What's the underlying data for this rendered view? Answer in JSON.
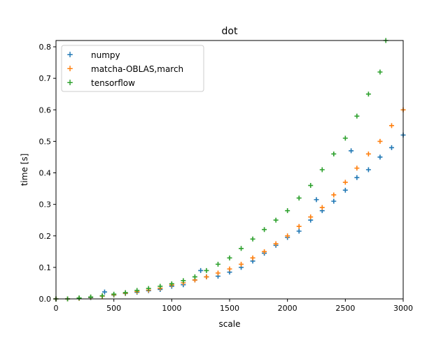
{
  "chart_data": {
    "type": "scatter",
    "title": "dot",
    "xlabel": "scale",
    "ylabel": "time [s]",
    "xlim": [
      0,
      3000
    ],
    "ylim": [
      0,
      0.82
    ],
    "xticks": [
      0,
      500,
      1000,
      1500,
      2000,
      2500,
      3000
    ],
    "yticks": [
      0.0,
      0.1,
      0.2,
      0.3,
      0.4,
      0.5,
      0.6,
      0.7,
      0.8
    ],
    "xtick_labels": [
      "0",
      "500",
      "1000",
      "1500",
      "2000",
      "2500",
      "3000"
    ],
    "ytick_labels": [
      "0.0",
      "0.1",
      "0.2",
      "0.3",
      "0.4",
      "0.5",
      "0.6",
      "0.7",
      "0.8"
    ],
    "grid": false,
    "legend_position": "top-left",
    "marker": "+",
    "series": [
      {
        "name": "numpy",
        "color": "#1f77b4",
        "x": [
          0,
          100,
          200,
          300,
          400,
          420,
          500,
          600,
          700,
          800,
          900,
          1000,
          1100,
          1200,
          1250,
          1300,
          1400,
          1500,
          1600,
          1700,
          1800,
          1900,
          2000,
          2100,
          2200,
          2250,
          2300,
          2400,
          2500,
          2550,
          2600,
          2700,
          2800,
          2900,
          3000
        ],
        "y": [
          0.0,
          0.0,
          0.002,
          0.004,
          0.009,
          0.022,
          0.012,
          0.017,
          0.021,
          0.026,
          0.03,
          0.04,
          0.045,
          0.06,
          0.09,
          0.07,
          0.072,
          0.085,
          0.1,
          0.12,
          0.145,
          0.17,
          0.195,
          0.215,
          0.25,
          0.315,
          0.28,
          0.31,
          0.345,
          0.47,
          0.385,
          0.41,
          0.45,
          0.48,
          0.52
        ]
      },
      {
        "name": "matcha-OBLAS,march",
        "color": "#ff7f0e",
        "x": [
          0,
          100,
          200,
          300,
          400,
          500,
          600,
          700,
          800,
          900,
          1000,
          1100,
          1200,
          1300,
          1400,
          1500,
          1600,
          1700,
          1800,
          1900,
          2000,
          2100,
          2200,
          2300,
          2400,
          2500,
          2600,
          2700,
          2800,
          2900,
          3000
        ],
        "y": [
          0.0,
          0.0,
          0.002,
          0.005,
          0.009,
          0.013,
          0.018,
          0.023,
          0.028,
          0.034,
          0.044,
          0.051,
          0.06,
          0.07,
          0.082,
          0.095,
          0.11,
          0.13,
          0.15,
          0.175,
          0.2,
          0.23,
          0.26,
          0.29,
          0.33,
          0.37,
          0.415,
          0.46,
          0.5,
          0.55,
          0.6
        ]
      },
      {
        "name": "tensorflow",
        "color": "#2ca02c",
        "x": [
          0,
          100,
          200,
          300,
          400,
          500,
          600,
          700,
          800,
          900,
          1000,
          1100,
          1200,
          1300,
          1400,
          1500,
          1600,
          1700,
          1800,
          1900,
          2000,
          2100,
          2200,
          2300,
          2400,
          2500,
          2600,
          2700,
          2800,
          2850
        ],
        "y": [
          0.0,
          0.0,
          0.003,
          0.006,
          0.01,
          0.015,
          0.02,
          0.027,
          0.033,
          0.04,
          0.048,
          0.058,
          0.07,
          0.09,
          0.11,
          0.13,
          0.16,
          0.19,
          0.22,
          0.25,
          0.28,
          0.32,
          0.36,
          0.41,
          0.46,
          0.51,
          0.58,
          0.65,
          0.72,
          0.82
        ]
      }
    ]
  }
}
